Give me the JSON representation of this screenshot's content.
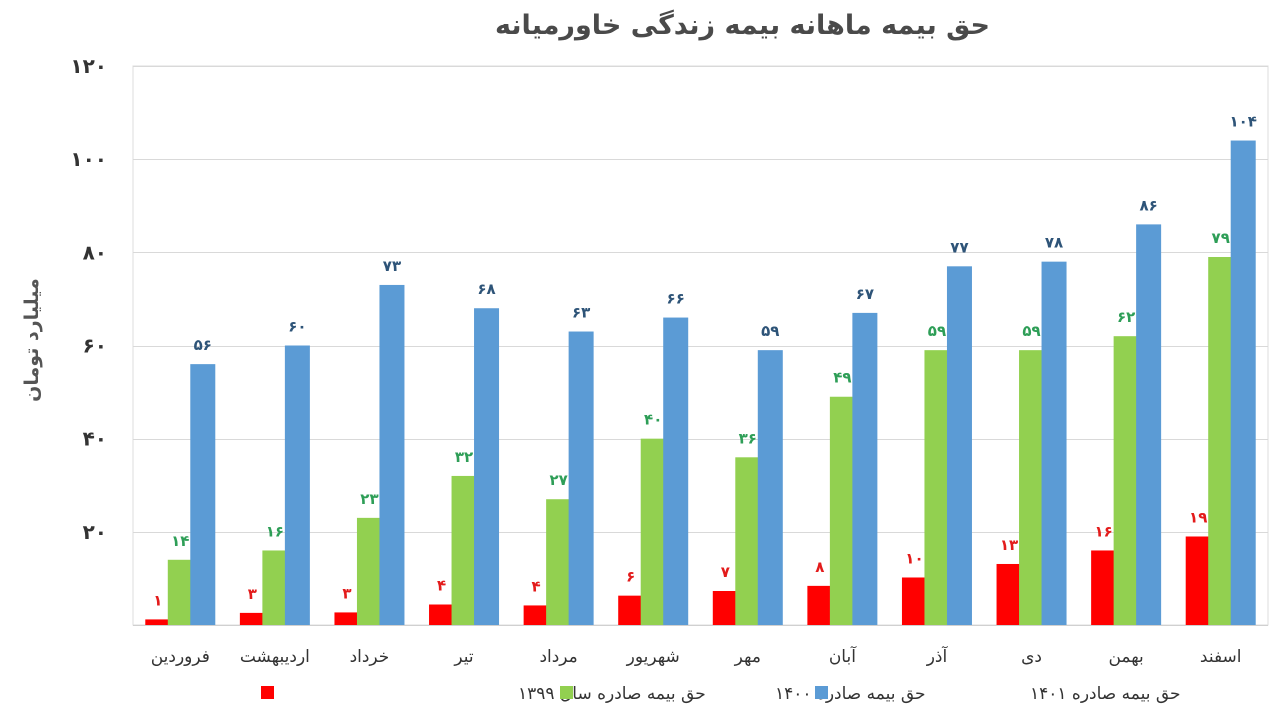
{
  "chart_data": {
    "type": "bar",
    "title": "حق بیمه ماهانه بیمه زندگی خاورمیانه",
    "ylabel": "میلیارد تومان",
    "xlabel": "",
    "ylim": [
      0,
      120
    ],
    "yticks": [
      20,
      40,
      60,
      80,
      100,
      120
    ],
    "ytick_labels": [
      "۲۰",
      "۴۰",
      "۶۰",
      "۸۰",
      "۱۰۰",
      "۱۲۰"
    ],
    "grid": true,
    "legend_position": "bottom",
    "categories": [
      "فروردین",
      "اردیبهشت",
      "خرداد",
      "تیر",
      "مرداد",
      "شهریور",
      "مهر",
      "آبان",
      "آذر",
      "دی",
      "بهمن",
      "اسفند"
    ],
    "series": [
      {
        "name": "حق بیمه صادره سال ۱۳۹۹",
        "color": "#ff0000",
        "label_color": "#e31b1b",
        "values": [
          1.2,
          2.6,
          2.7,
          4.4,
          4.2,
          6.3,
          7.3,
          8.4,
          10.2,
          13.1,
          16,
          19
        ],
        "labels": [
          "۱",
          "۳",
          "۳",
          "۴",
          "۴",
          "۶",
          "۷",
          "۸",
          "۱۰",
          "۱۳",
          "۱۶",
          "۱۹"
        ]
      },
      {
        "name": "حق بیمه صادره ۱۴۰۰",
        "color": "#92d050",
        "label_color": "#2e9e57",
        "values": [
          14,
          16,
          23,
          32,
          27,
          40,
          36,
          49,
          59,
          59,
          62,
          79
        ],
        "labels": [
          "۱۴",
          "۱۶",
          "۲۳",
          "۳۲",
          "۲۷",
          "۴۰",
          "۳۶",
          "۴۹",
          "۵۹",
          "۵۹",
          "۶۲",
          "۷۹"
        ]
      },
      {
        "name": "حق بیمه صادره ۱۴۰۱",
        "color": "#5b9bd5",
        "label_color": "#2e5478",
        "values": [
          56,
          60,
          73,
          68,
          63,
          66,
          59,
          67,
          77,
          78,
          86,
          104
        ],
        "labels": [
          "۵۶",
          "۶۰",
          "۷۳",
          "۶۸",
          "۶۳",
          "۶۶",
          "۵۹",
          "۶۷",
          "۷۷",
          "۷۸",
          "۸۶",
          "۱۰۴"
        ]
      }
    ]
  }
}
